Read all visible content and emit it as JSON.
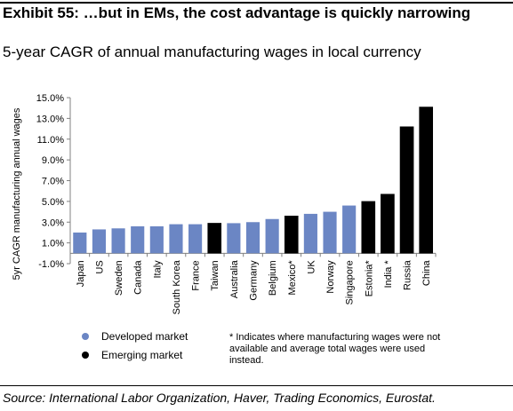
{
  "header": {
    "title": "Exhibit 55: …but in EMs, the cost advantage is quickly narrowing",
    "subtitle": "5-year CAGR of annual manufacturing wages in local currency"
  },
  "legend": {
    "developed_label": "Developed market",
    "emerging_label": "Emerging market",
    "developed_color": "#6b86c4",
    "emerging_color": "#000000"
  },
  "footnote": "* Indicates where manufacturing wages were not available and average total wages were used instead.",
  "source": "Source: International Labor Organization, Haver, Trading Economics, Eurostat.",
  "chart_data": {
    "type": "bar",
    "ylabel": "5yr CAGR manufacturing annual wages",
    "ylim": [
      -1.0,
      15.0
    ],
    "yticks": [
      -1.0,
      1.0,
      3.0,
      5.0,
      7.0,
      9.0,
      11.0,
      13.0,
      15.0
    ],
    "ytick_labels": [
      "-1.0%",
      "1.0%",
      "3.0%",
      "5.0%",
      "7.0%",
      "9.0%",
      "11.0%",
      "13.0%",
      "15.0%"
    ],
    "categories": [
      "Japan",
      "US",
      "Sweden",
      "Canada",
      "Italy",
      "South Korea",
      "France",
      "Taiwan",
      "Australia",
      "Germany",
      "Belgium",
      "Mexico*",
      "UK",
      "Norway",
      "Singapore",
      "Estonia*",
      "India *",
      "Russia",
      "China"
    ],
    "values": [
      2.0,
      2.3,
      2.4,
      2.6,
      2.6,
      2.8,
      2.8,
      2.9,
      2.9,
      3.0,
      3.3,
      3.6,
      3.8,
      4.0,
      4.6,
      5.0,
      5.7,
      12.2,
      14.1
    ],
    "market": [
      "developed",
      "developed",
      "developed",
      "developed",
      "developed",
      "developed",
      "developed",
      "emerging",
      "developed",
      "developed",
      "developed",
      "emerging",
      "developed",
      "developed",
      "developed",
      "emerging",
      "emerging",
      "emerging",
      "emerging"
    ],
    "grid": false,
    "legend_position": "bottom-left"
  }
}
